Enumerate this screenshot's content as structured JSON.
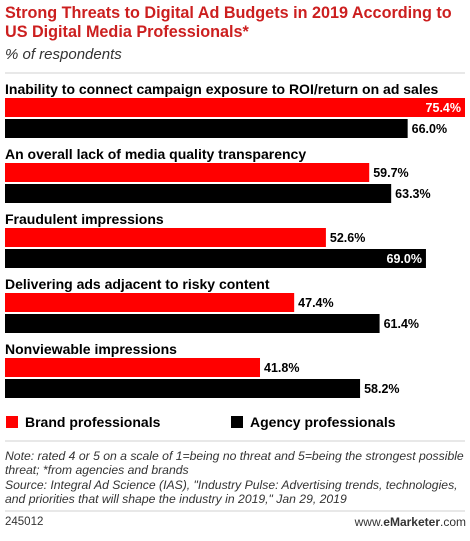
{
  "chart_data": {
    "type": "bar",
    "orientation": "horizontal",
    "title": "Strong Threats to Digital Ad Budgets in 2019 According to US Digital Media Professionals*",
    "subtitle": "% of respondents",
    "categories": [
      "Inability to connect campaign exposure to ROI/return on ad sales",
      "An overall lack of media quality transparency",
      "Fraudulent impressions",
      "Delivering ads adjacent to risky content",
      "Nonviewable impressions"
    ],
    "series": [
      {
        "name": "Brand professionals",
        "color": "#ff0000",
        "values": [
          75.4,
          59.7,
          52.6,
          47.4,
          41.8
        ]
      },
      {
        "name": "Agency professionals",
        "color": "#000000",
        "values": [
          66.0,
          63.3,
          69.0,
          61.4,
          58.2
        ]
      }
    ],
    "xlim": [
      0,
      75.4
    ],
    "grid": false,
    "legend": "bottom",
    "value_suffix": "%"
  },
  "footnote": {
    "note": "Note: rated 4 or 5 on a scale of 1=being no threat and 5=being the strongest possible threat; *from agencies and brands",
    "source": "Source: Integral Ad Science (IAS), \"Industry Pulse: Advertising trends, technologies, and priorities that will shape the industry in 2019,\" Jan 29, 2019"
  },
  "chart_id": "245012",
  "brand": {
    "prefix": "www.",
    "name": "eMarketer",
    "suffix": ".com"
  },
  "colors": {
    "title": "#cc1f1f",
    "brand_series": "#ff0000",
    "agency_series": "#000000"
  }
}
